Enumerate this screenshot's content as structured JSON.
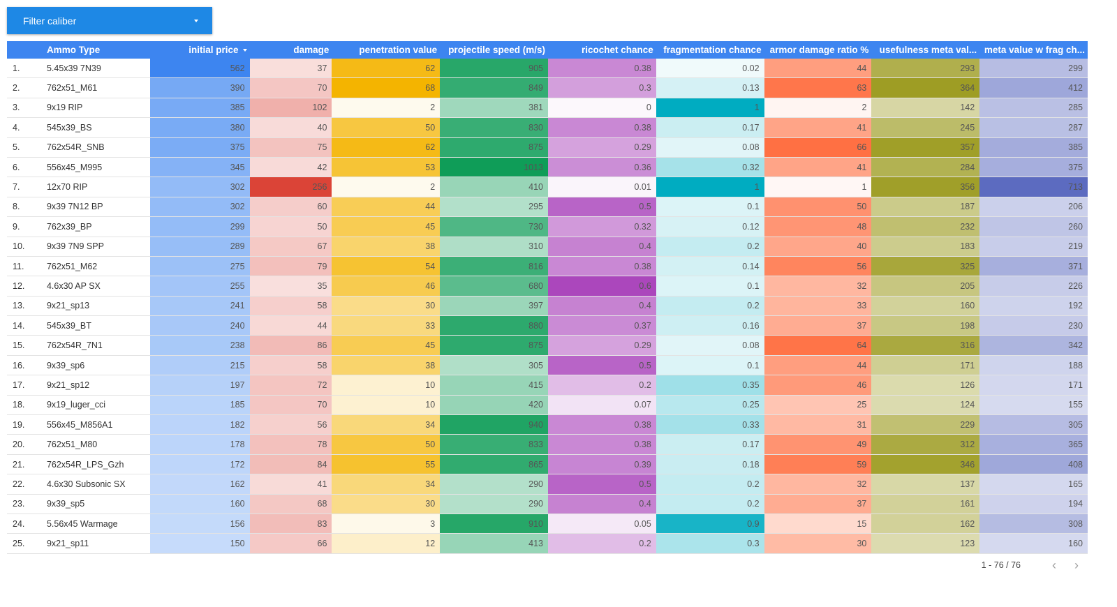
{
  "filter": {
    "label": "Filter caliber",
    "caret_icon": "caret-down-icon"
  },
  "table": {
    "columns": [
      {
        "key": "idx",
        "label": "",
        "align": "left"
      },
      {
        "key": "ammo",
        "label": "Ammo Type",
        "align": "left"
      },
      {
        "key": "price",
        "label": "initial price",
        "align": "right",
        "sorted": "desc"
      },
      {
        "key": "damage",
        "label": "damage",
        "align": "right"
      },
      {
        "key": "pen",
        "label": "penetration value",
        "align": "right"
      },
      {
        "key": "speed",
        "label": "projectile speed (m/s)",
        "align": "right"
      },
      {
        "key": "ricochet",
        "label": "ricochet chance",
        "align": "right"
      },
      {
        "key": "frag",
        "label": "fragmentation chance",
        "align": "right"
      },
      {
        "key": "armor",
        "label": "armor damage ratio %",
        "align": "right"
      },
      {
        "key": "meta",
        "label": "usefulness meta val...",
        "align": "right"
      },
      {
        "key": "metafrag",
        "label": "meta value w frag ch...",
        "align": "right"
      }
    ],
    "rows": [
      [
        "1.",
        "5.45x39 7N39",
        "562",
        "37",
        "62",
        "905",
        "0.38",
        "0.02",
        "44",
        "293",
        "299"
      ],
      [
        "2.",
        "762x51_M61",
        "390",
        "70",
        "68",
        "849",
        "0.3",
        "0.13",
        "63",
        "364",
        "412"
      ],
      [
        "3.",
        "9x19 RIP",
        "385",
        "102",
        "2",
        "381",
        "0",
        "1",
        "2",
        "142",
        "285"
      ],
      [
        "4.",
        "545x39_BS",
        "380",
        "40",
        "50",
        "830",
        "0.38",
        "0.17",
        "41",
        "245",
        "287"
      ],
      [
        "5.",
        "762x54R_SNB",
        "375",
        "75",
        "62",
        "875",
        "0.29",
        "0.08",
        "66",
        "357",
        "385"
      ],
      [
        "6.",
        "556x45_M995",
        "345",
        "42",
        "53",
        "1013",
        "0.36",
        "0.32",
        "41",
        "284",
        "375"
      ],
      [
        "7.",
        "12x70 RIP",
        "302",
        "256",
        "2",
        "410",
        "0.01",
        "1",
        "1",
        "356",
        "713"
      ],
      [
        "8.",
        "9x39 7N12 BP",
        "302",
        "60",
        "44",
        "295",
        "0.5",
        "0.1",
        "50",
        "187",
        "206"
      ],
      [
        "9.",
        "762x39_BP",
        "299",
        "50",
        "45",
        "730",
        "0.32",
        "0.12",
        "48",
        "232",
        "260"
      ],
      [
        "10.",
        "9x39 7N9 SPP",
        "289",
        "67",
        "38",
        "310",
        "0.4",
        "0.2",
        "40",
        "183",
        "219"
      ],
      [
        "11.",
        "762x51_M62",
        "275",
        "79",
        "54",
        "816",
        "0.38",
        "0.14",
        "56",
        "325",
        "371"
      ],
      [
        "12.",
        "4.6x30 AP SX",
        "255",
        "35",
        "46",
        "680",
        "0.6",
        "0.1",
        "32",
        "205",
        "226"
      ],
      [
        "13.",
        "9x21_sp13",
        "241",
        "58",
        "30",
        "397",
        "0.4",
        "0.2",
        "33",
        "160",
        "192"
      ],
      [
        "14.",
        "545x39_BT",
        "240",
        "44",
        "33",
        "880",
        "0.37",
        "0.16",
        "37",
        "198",
        "230"
      ],
      [
        "15.",
        "762x54R_7N1",
        "238",
        "86",
        "45",
        "875",
        "0.29",
        "0.08",
        "64",
        "316",
        "342"
      ],
      [
        "16.",
        "9x39_sp6",
        "215",
        "58",
        "38",
        "305",
        "0.5",
        "0.1",
        "44",
        "171",
        "188"
      ],
      [
        "17.",
        "9x21_sp12",
        "197",
        "72",
        "10",
        "415",
        "0.2",
        "0.35",
        "46",
        "126",
        "171"
      ],
      [
        "18.",
        "9x19_luger_cci",
        "185",
        "70",
        "10",
        "420",
        "0.07",
        "0.25",
        "25",
        "124",
        "155"
      ],
      [
        "19.",
        "556x45_M856A1",
        "182",
        "56",
        "34",
        "940",
        "0.38",
        "0.33",
        "31",
        "229",
        "305"
      ],
      [
        "20.",
        "762x51_M80",
        "178",
        "78",
        "50",
        "833",
        "0.38",
        "0.17",
        "49",
        "312",
        "365"
      ],
      [
        "21.",
        "762x54R_LPS_Gzh",
        "172",
        "84",
        "55",
        "865",
        "0.39",
        "0.18",
        "59",
        "346",
        "408"
      ],
      [
        "22.",
        "4.6x30 Subsonic SX",
        "162",
        "41",
        "34",
        "290",
        "0.5",
        "0.2",
        "32",
        "137",
        "165"
      ],
      [
        "23.",
        "9x39_sp5",
        "160",
        "68",
        "30",
        "290",
        "0.4",
        "0.2",
        "37",
        "161",
        "194"
      ],
      [
        "24.",
        "5.56x45 Warmage",
        "156",
        "83",
        "3",
        "910",
        "0.05",
        "0.9",
        "15",
        "162",
        "308"
      ],
      [
        "25.",
        "9x21_sp11",
        "150",
        "66",
        "12",
        "413",
        "0.2",
        "0.3",
        "30",
        "123",
        "160"
      ]
    ],
    "heatmap": {
      "price": {
        "color": "#3d85f0",
        "min": 0,
        "max": 562
      },
      "damage": {
        "color": "#db4437",
        "min": 0,
        "max": 256
      },
      "pen": {
        "color": "#f4b400",
        "min": 0,
        "max": 68
      },
      "speed": {
        "color": "#0f9d58",
        "min": 0,
        "max": 1013
      },
      "ricochet": {
        "color": "#ab47bc",
        "min": 0,
        "max": 0.6
      },
      "frag": {
        "color": "#00acc1",
        "min": 0,
        "max": 1
      },
      "armor": {
        "color": "#ff7043",
        "min": 0,
        "max": 66
      },
      "meta": {
        "color": "#9e9d24",
        "min": 0,
        "max": 364
      },
      "metafrag": {
        "color": "#5c6bc0",
        "min": 0,
        "max": 713
      }
    }
  },
  "pager": {
    "range_text": "1 - 76 / 76",
    "prev_icon": "chevron-left-icon",
    "next_icon": "chevron-right-icon"
  }
}
